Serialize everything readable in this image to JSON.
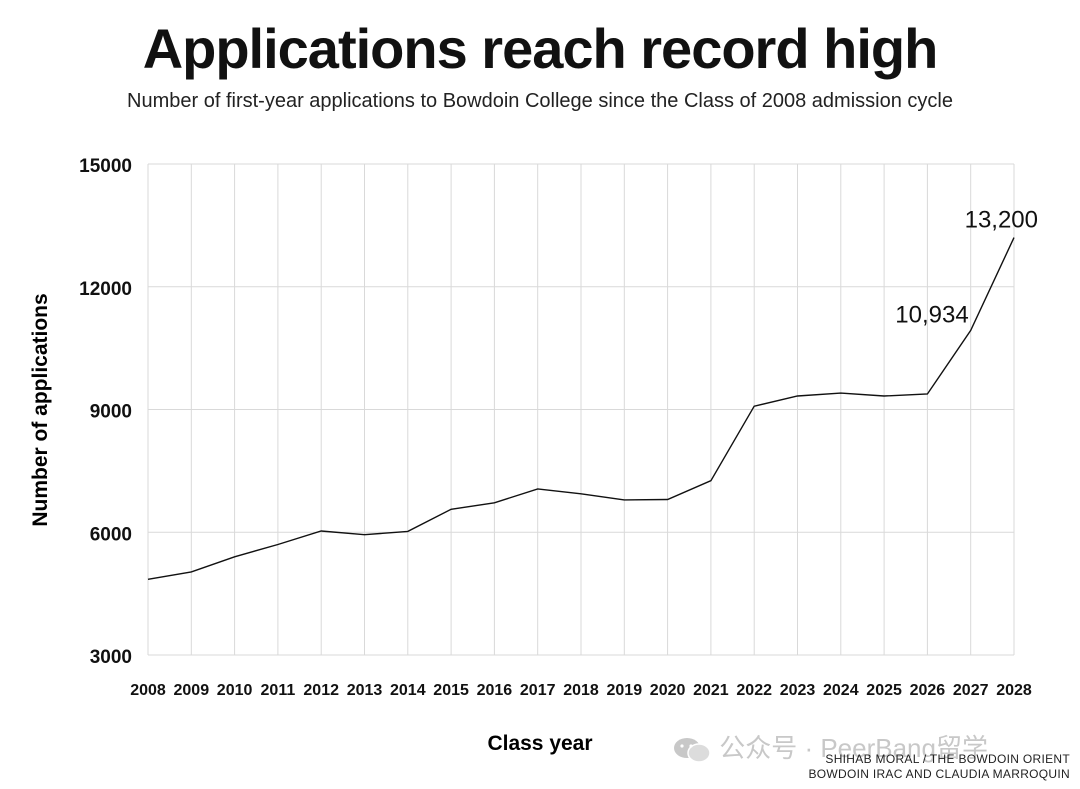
{
  "header": {
    "title": "Applications reach record high",
    "subtitle": "Number of first-year applications to Bowdoin College since the Class of 2008 admission cycle"
  },
  "credits": {
    "line1": "SHIHAB MORAL / THE BOWDOIN ORIENT",
    "line2": "BOWDOIN IRAC AND CLAUDIA MARROQUIN"
  },
  "watermark": {
    "icon": "wechat-icon",
    "text": "公众号 · PeerBang留学"
  },
  "colors": {
    "line": "#111111",
    "grid": "#d9d9d9",
    "text": "#111111"
  },
  "chart_data": {
    "type": "line",
    "title": "Applications reach record high",
    "subtitle": "Number of first-year applications to Bowdoin College since the Class of 2008 admission cycle",
    "xlabel": "Class year",
    "ylabel": "Number of applications",
    "x": [
      "2008",
      "2009",
      "2010",
      "2011",
      "2012",
      "2013",
      "2014",
      "2015",
      "2016",
      "2017",
      "2018",
      "2019",
      "2020",
      "2021",
      "2022",
      "2023",
      "2024",
      "2025",
      "2026",
      "2027",
      "2028"
    ],
    "values": [
      4850,
      5030,
      5400,
      5700,
      6030,
      5940,
      6020,
      6560,
      6720,
      7060,
      6940,
      6790,
      6800,
      7260,
      9080,
      9330,
      9400,
      9330,
      9380,
      10934,
      13200
    ],
    "ylim": [
      3000,
      15000
    ],
    "yticks": [
      "3000",
      "6000",
      "9000",
      "12000",
      "15000"
    ],
    "ytick_values": [
      3000,
      6000,
      9000,
      12000,
      15000
    ],
    "grid": true,
    "annotations": [
      {
        "x": "2027",
        "value": 10934,
        "text": "10,934"
      },
      {
        "x": "2028",
        "value": 13200,
        "text": "13,200"
      }
    ]
  }
}
